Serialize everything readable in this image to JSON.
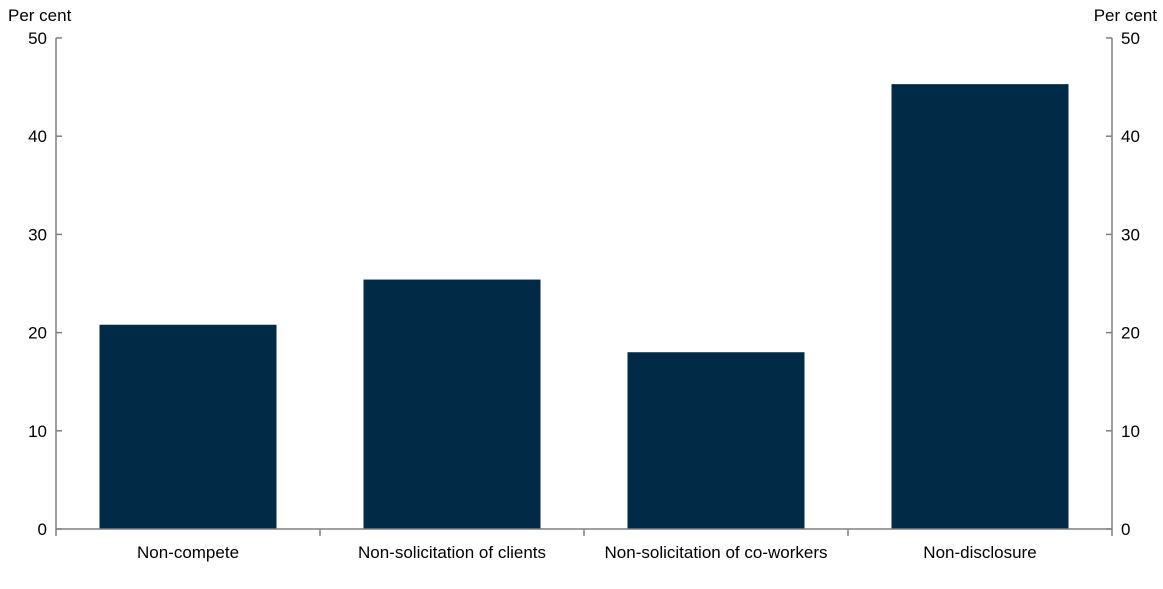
{
  "chart_data": {
    "type": "bar",
    "title": "",
    "xlabel": "",
    "ylabel": "Per cent",
    "ylabel_right": "Per cent",
    "categories": [
      "Non-compete",
      "Non-solicitation of clients",
      "Non-solicitation of co-workers",
      "Non-disclosure"
    ],
    "values": [
      20.8,
      25.4,
      18.0,
      45.3
    ],
    "ylim": [
      0,
      50
    ],
    "yticks": [
      0,
      10,
      20,
      30,
      40,
      50
    ],
    "grid": false,
    "legend": "none",
    "bar_color": "#002a45",
    "axis_color": "#808080"
  }
}
